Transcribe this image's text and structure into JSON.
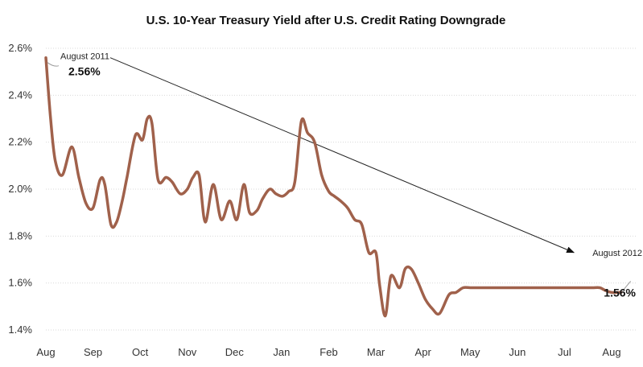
{
  "chart_data": {
    "type": "line",
    "title": "U.S. 10-Year Treasury Yield after U.S. Credit Rating Downgrade",
    "xlabel": "",
    "ylabel": "",
    "ylim": [
      1.4,
      2.6
    ],
    "yticks": [
      "1.4%",
      "1.6%",
      "1.8%",
      "2.0%",
      "2.2%",
      "2.4%",
      "2.6%"
    ],
    "ytick_values": [
      1.4,
      1.6,
      1.8,
      2.0,
      2.2,
      2.4,
      2.6
    ],
    "categories": [
      "Aug",
      "Sep",
      "Oct",
      "Nov",
      "Dec",
      "Jan",
      "Feb",
      "Mar",
      "Apr",
      "May",
      "Jun",
      "Jul",
      "Aug"
    ],
    "grid": true,
    "line_color": "#a0614b",
    "series": [
      {
        "x": [
          0,
          0.1,
          0.2,
          0.35,
          0.55,
          0.7,
          0.85,
          1.0,
          1.15,
          1.25,
          1.38,
          1.5,
          1.62,
          1.72,
          1.9,
          2.05,
          2.15,
          2.25,
          2.38,
          2.55,
          2.68,
          2.85,
          3.0,
          3.12,
          3.25,
          3.38,
          3.55,
          3.72,
          3.9,
          4.05,
          4.2,
          4.32,
          4.48,
          4.6,
          4.75,
          4.88,
          5.02,
          5.15,
          5.28,
          5.42,
          5.55,
          5.7,
          5.85,
          6.0,
          6.12,
          6.25,
          6.4,
          6.55,
          6.7,
          6.85,
          7.0,
          7.08,
          7.2,
          7.32,
          7.5,
          7.62,
          7.75,
          7.9,
          8.05,
          8.2,
          8.35,
          8.55,
          8.7,
          8.85,
          9.0,
          9.15,
          9.3,
          9.45,
          9.6,
          9.72,
          9.85,
          10.0,
          10.15,
          10.32,
          10.5,
          10.7,
          10.85,
          11.0,
          11.15,
          11.3,
          11.45,
          11.6,
          11.75,
          11.85,
          12.0,
          12.2
        ],
        "values": [
          2.56,
          2.3,
          2.12,
          2.06,
          2.18,
          2.05,
          1.94,
          1.92,
          2.04,
          2.02,
          1.85,
          1.86,
          1.95,
          2.05,
          2.23,
          2.21,
          2.3,
          2.28,
          2.04,
          2.05,
          2.03,
          1.98,
          2.0,
          2.05,
          2.06,
          1.86,
          2.02,
          1.87,
          1.95,
          1.87,
          2.02,
          1.9,
          1.91,
          1.96,
          2.0,
          1.98,
          1.97,
          1.99,
          2.03,
          2.29,
          2.24,
          2.2,
          2.06,
          1.99,
          1.97,
          1.95,
          1.92,
          1.87,
          1.85,
          1.73,
          1.73,
          1.59,
          1.46,
          1.63,
          1.58,
          1.66,
          1.66,
          1.6,
          1.53,
          1.49,
          1.47,
          1.55,
          1.56,
          1.58,
          1.58,
          1.58,
          1.58,
          1.58,
          1.58,
          1.58,
          1.58,
          1.58,
          1.58,
          1.58,
          1.58,
          1.58,
          1.58,
          1.58,
          1.58,
          1.58,
          1.58,
          1.58,
          1.58,
          1.57,
          1.56,
          1.56
        ]
      }
    ],
    "annotations": [
      {
        "label": "August 2011",
        "value": "2.56%"
      },
      {
        "label": "August 2012",
        "value": "1.56%"
      }
    ]
  }
}
